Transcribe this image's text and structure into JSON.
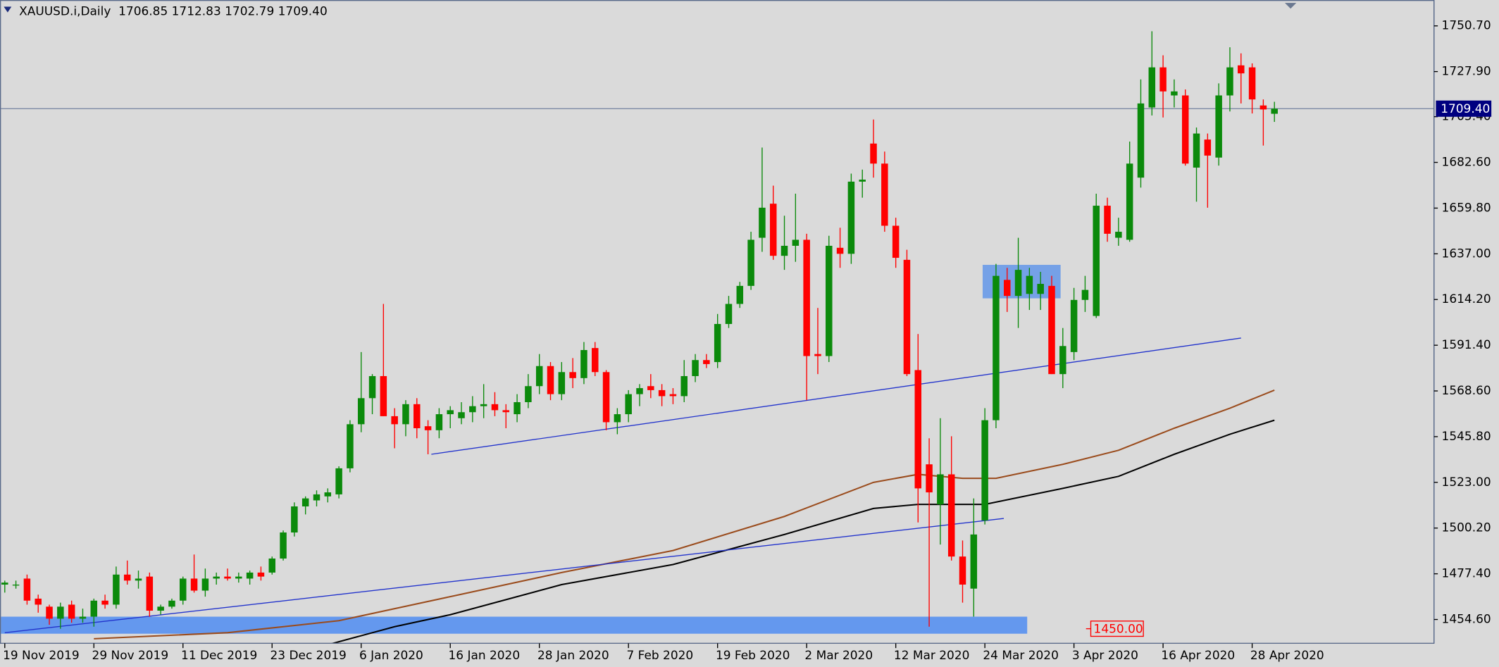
{
  "chart_data": {
    "type": "candlestick",
    "info": "XAUUSD.i,Daily  1706.85 1712.83 1702.79 1709.40",
    "categories": [
      "19 Nov 2019",
      null,
      null,
      null,
      null,
      null,
      null,
      null,
      "29 Nov 2019",
      null,
      null,
      null,
      null,
      null,
      null,
      null,
      "11 Dec 2019",
      null,
      null,
      null,
      null,
      null,
      null,
      null,
      "23 Dec 2019",
      null,
      null,
      null,
      null,
      null,
      null,
      null,
      "6 Jan 2020",
      null,
      null,
      null,
      null,
      null,
      null,
      null,
      "16 Jan 2020",
      null,
      null,
      null,
      null,
      null,
      null,
      null,
      "28 Jan 2020",
      null,
      null,
      null,
      null,
      null,
      null,
      null,
      "7 Feb 2020",
      null,
      null,
      null,
      null,
      null,
      null,
      null,
      "19 Feb 2020",
      null,
      null,
      null,
      null,
      null,
      null,
      null,
      "2 Mar 2020",
      null,
      null,
      null,
      null,
      null,
      null,
      null,
      "12 Mar 2020",
      null,
      null,
      null,
      null,
      null,
      null,
      null,
      "24 Mar 2020",
      null,
      null,
      null,
      null,
      null,
      null,
      null,
      "3 Apr 2020",
      null,
      null,
      null,
      null,
      null,
      null,
      null,
      "16 Apr 2020",
      null,
      null,
      null,
      null,
      null,
      null,
      null,
      "28 Apr 2020",
      null,
      null
    ],
    "open": [
      1472,
      1472,
      1475,
      1465,
      1461,
      1455,
      1462,
      1455,
      1456,
      1464,
      1462,
      1477,
      1474,
      1476,
      1459,
      1461,
      1464,
      1475,
      1469,
      1475,
      1476,
      1475,
      1475,
      1478,
      1478,
      1485,
      1498,
      1511,
      1514,
      1516,
      1517,
      1530,
      1552,
      1565,
      1576,
      1556,
      1552,
      1562,
      1551,
      1549,
      1557,
      1555,
      1558,
      1561,
      1562,
      1559,
      1557,
      1563,
      1571,
      1581,
      1567,
      1578,
      1575,
      1590,
      1578,
      1553,
      1557,
      1567,
      1571,
      1569,
      1567,
      1566,
      1576,
      1584,
      1583,
      1602,
      1612,
      1621,
      1645,
      1662,
      1636,
      1641,
      1644,
      1587,
      1586,
      1640,
      1637,
      1673,
      1692,
      1682,
      1651,
      1634,
      1579,
      1532,
      1512,
      1527,
      1486,
      1470,
      1504,
      1554,
      1624,
      1616,
      1617,
      1617,
      1621,
      1577,
      1588,
      1614,
      1606,
      1661,
      1645,
      1644,
      1675,
      1710,
      1730,
      1716,
      1716,
      1680,
      1694,
      1685,
      1716,
      1731,
      1730,
      1711,
      1706.85
    ],
    "high": [
      1474,
      1474,
      1477,
      1467,
      1462,
      1463,
      1464,
      1460,
      1465,
      1467,
      1481,
      1484,
      1479,
      1478,
      1462,
      1465,
      1476,
      1487,
      1480,
      1478,
      1480,
      1478,
      1479,
      1481,
      1486,
      1499,
      1513,
      1516,
      1519,
      1520,
      1531,
      1554,
      1588,
      1577,
      1612,
      1560,
      1564,
      1565,
      1554,
      1560,
      1561,
      1563,
      1566,
      1572,
      1568,
      1562,
      1567,
      1577,
      1587,
      1583,
      1583,
      1585,
      1593,
      1593,
      1579,
      1560,
      1569,
      1572,
      1577,
      1572,
      1570,
      1584,
      1587,
      1587,
      1607,
      1616,
      1623,
      1648,
      1690,
      1671,
      1656,
      1667,
      1647,
      1610,
      1646,
      1650,
      1677,
      1679,
      1704,
      1688,
      1655,
      1639,
      1597,
      1545,
      1555,
      1546,
      1494,
      1515,
      1560,
      1632,
      1630,
      1645,
      1630,
      1628,
      1626,
      1600,
      1620,
      1626,
      1667,
      1665,
      1655,
      1693,
      1724,
      1748,
      1736,
      1724,
      1719,
      1700,
      1697,
      1722,
      1740,
      1737,
      1732,
      1714,
      1712.83
    ],
    "low": [
      1468,
      1470,
      1462,
      1458,
      1452,
      1450,
      1453,
      1453,
      1451,
      1460,
      1460,
      1472,
      1470,
      1456,
      1457,
      1460,
      1462,
      1468,
      1466,
      1472,
      1474,
      1473,
      1472,
      1474,
      1477,
      1484,
      1496,
      1507,
      1511,
      1513,
      1515,
      1528,
      1548,
      1557,
      1556,
      1540,
      1546,
      1545,
      1537,
      1545,
      1550,
      1552,
      1553,
      1555,
      1556,
      1550,
      1553,
      1560,
      1567,
      1564,
      1564,
      1570,
      1572,
      1576,
      1549,
      1547,
      1553,
      1561,
      1565,
      1561,
      1562,
      1563,
      1573,
      1580,
      1580,
      1600,
      1610,
      1619,
      1638,
      1634,
      1629,
      1633,
      1564,
      1577,
      1583,
      1630,
      1632,
      1665,
      1675,
      1648,
      1630,
      1576,
      1503,
      1451,
      1492,
      1484,
      1463,
      1456,
      1502,
      1550,
      1608,
      1600,
      1609,
      1609,
      1577,
      1570,
      1584,
      1608,
      1605,
      1643,
      1641,
      1643,
      1670,
      1706,
      1705,
      1710,
      1681,
      1663,
      1660,
      1681,
      1708,
      1712,
      1707,
      1691,
      1702.79
    ],
    "close": [
      1473,
      1472,
      1464,
      1462,
      1455,
      1461,
      1455,
      1456,
      1464,
      1462,
      1477,
      1474,
      1475,
      1459,
      1461,
      1464,
      1475,
      1469,
      1475,
      1476,
      1475,
      1476,
      1478,
      1476,
      1485,
      1498,
      1511,
      1515,
      1517,
      1518,
      1530,
      1552,
      1565,
      1576,
      1556,
      1552,
      1562,
      1550,
      1549,
      1557,
      1559,
      1558,
      1561,
      1562,
      1559,
      1558,
      1563,
      1571,
      1581,
      1567,
      1578,
      1575,
      1589,
      1578,
      1553,
      1557,
      1567,
      1570,
      1569,
      1566,
      1566,
      1576,
      1584,
      1582,
      1602,
      1612,
      1621,
      1644,
      1660,
      1636,
      1641,
      1644,
      1586,
      1586,
      1641,
      1637,
      1673,
      1674,
      1682,
      1651,
      1635,
      1577,
      1520,
      1518,
      1527,
      1486,
      1472,
      1497,
      1554,
      1626,
      1616,
      1629,
      1626,
      1622,
      1577,
      1591,
      1614,
      1619,
      1661,
      1647,
      1648,
      1682,
      1712,
      1730,
      1718,
      1718,
      1682,
      1697,
      1686,
      1716,
      1730,
      1727,
      1714,
      1709,
      1709.4
    ],
    "bull_color": "#0b8a0b",
    "bear_color": "#ff0000",
    "background": "#dadada",
    "ylim": [
      1443.2,
      1763.6
    ],
    "yticks": [
      {
        "value": 1454.6,
        "label": "1454.60"
      },
      {
        "value": 1477.4,
        "label": "1477.40"
      },
      {
        "value": 1500.2,
        "label": "1500.20"
      },
      {
        "value": 1523.0,
        "label": "1523.00"
      },
      {
        "value": 1545.8,
        "label": "1545.80"
      },
      {
        "value": 1568.6,
        "label": "1568.60"
      },
      {
        "value": 1591.4,
        "label": "1591.40"
      },
      {
        "value": 1614.2,
        "label": "1614.20"
      },
      {
        "value": 1637.0,
        "label": "1637.00"
      },
      {
        "value": 1659.8,
        "label": "1659.80"
      },
      {
        "value": 1682.6,
        "label": "1682.60"
      },
      {
        "value": 1705.4,
        "label": "1705.40"
      },
      {
        "value": 1727.9,
        "label": "1727.90"
      },
      {
        "value": 1750.7,
        "label": "1750.70"
      }
    ],
    "price_line": {
      "value": 1709.4,
      "label": "1709.40",
      "color": "#000080"
    },
    "level_label": {
      "value": 1450,
      "label": "1450.00",
      "color": "#ff0000"
    },
    "overlays": [
      {
        "color": "#9a4b1c",
        "x": [
          8,
          20,
          30,
          40,
          50,
          60,
          70,
          78,
          82,
          86,
          89,
          95,
          100,
          105,
          110,
          114
        ],
        "values": [
          1445,
          1448,
          1454,
          1466,
          1478,
          1489,
          1506,
          1523,
          1527,
          1525,
          1525,
          1532,
          1539,
          1550,
          1560,
          1569
        ]
      },
      {
        "color": "#000000",
        "x": [
          29,
          35,
          40,
          50,
          60,
          70,
          78,
          82,
          88,
          95,
          100,
          105,
          110,
          114
        ],
        "values": [
          1442,
          1451,
          1457,
          1472,
          1482,
          1497,
          1510,
          1512,
          1512,
          1520,
          1526,
          1537,
          1547,
          1554
        ]
      }
    ],
    "trendlines": [
      {
        "color": "#2233cc",
        "x": [
          38.3,
          111.0
        ],
        "y": [
          1537,
          1595
        ]
      },
      {
        "color": "#2233cc",
        "x": [
          0,
          89.7
        ],
        "y": [
          1448,
          1505
        ]
      }
    ],
    "zones": [
      {
        "color": "#6c9ce8",
        "x": [
          87.8,
          94.8
        ],
        "y": [
          1614.8,
          1631.5
        ]
      },
      {
        "color": "#5a92f0",
        "x": [
          -0.4,
          91.8
        ],
        "y": [
          1447.5,
          1456
        ]
      }
    ]
  }
}
